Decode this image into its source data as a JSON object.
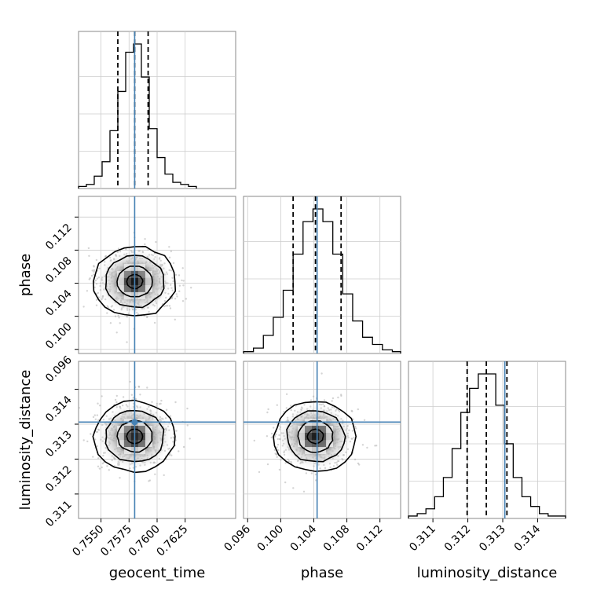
{
  "chart_data": {
    "type": "corner",
    "parameters": [
      "geocent_time",
      "phase",
      "luminosity_distance"
    ],
    "injection": {
      "geocent_time": 0.758,
      "phase": 0.1044,
      "luminosity_distance": 0.31306
    },
    "injection_color": "#4682b4",
    "tick_labels": {
      "geocent_time": [
        "0.7550",
        "0.7575",
        "0.7600",
        "0.7625"
      ],
      "phase": [
        "0.096",
        "0.100",
        "0.104",
        "0.108",
        "0.112"
      ],
      "luminosity_distance": [
        "0.311",
        "0.312",
        "0.313",
        "0.314"
      ]
    },
    "ranges": {
      "geocent_time": [
        0.753,
        0.767
      ],
      "phase": [
        0.0955,
        0.1145
      ],
      "luminosity_distance": [
        0.3103,
        0.3148
      ]
    },
    "marginals": {
      "geocent_time": {
        "quantiles": [
          0.7565,
          0.758,
          0.7592
        ],
        "bin_edges": [
          0.753,
          0.7537,
          0.7544,
          0.7551,
          0.7558,
          0.7565,
          0.7572,
          0.7579,
          0.7586,
          0.7593,
          0.76,
          0.7607,
          0.7614,
          0.7621,
          0.7628,
          0.7635
        ],
        "counts": [
          1,
          2,
          6,
          13,
          28,
          47,
          66,
          70,
          54,
          29,
          15,
          7,
          3,
          2,
          1
        ]
      },
      "phase": {
        "bin_edges": [
          0.0955,
          0.0967,
          0.0979,
          0.0991,
          0.1003,
          0.1015,
          0.1027,
          0.1039,
          0.1051,
          0.1063,
          0.1075,
          0.1087,
          0.1099,
          0.1111,
          0.1123,
          0.1135,
          0.1145
        ],
        "quantiles": [
          0.1015,
          0.1042,
          0.1073
        ],
        "counts": [
          1,
          3,
          10,
          20,
          35,
          55,
          73,
          80,
          73,
          55,
          33,
          18,
          9,
          5,
          2,
          1
        ]
      },
      "luminosity_distance": {
        "quantiles": [
          0.31198,
          0.31253,
          0.31312
        ],
        "bin_edges": [
          0.3103,
          0.31055,
          0.3108,
          0.31105,
          0.3113,
          0.31155,
          0.3118,
          0.31205,
          0.3123,
          0.31255,
          0.3128,
          0.31305,
          0.3133,
          0.31355,
          0.3138,
          0.31405,
          0.3143,
          0.31455,
          0.3148
        ],
        "counts": [
          1,
          2,
          4,
          9,
          17,
          29,
          44,
          54,
          60,
          60,
          47,
          31,
          17,
          9,
          5,
          2,
          1,
          1
        ]
      }
    },
    "joint": {
      "phase_vs_geocent_time": {
        "center": [
          0.758,
          0.1042
        ]
      },
      "luminosity_distance_vs_geocent_time": {
        "center": [
          0.758,
          0.31265
        ]
      },
      "luminosity_distance_vs_phase": {
        "center": [
          0.1042,
          0.31265
        ]
      }
    },
    "grid": true
  }
}
